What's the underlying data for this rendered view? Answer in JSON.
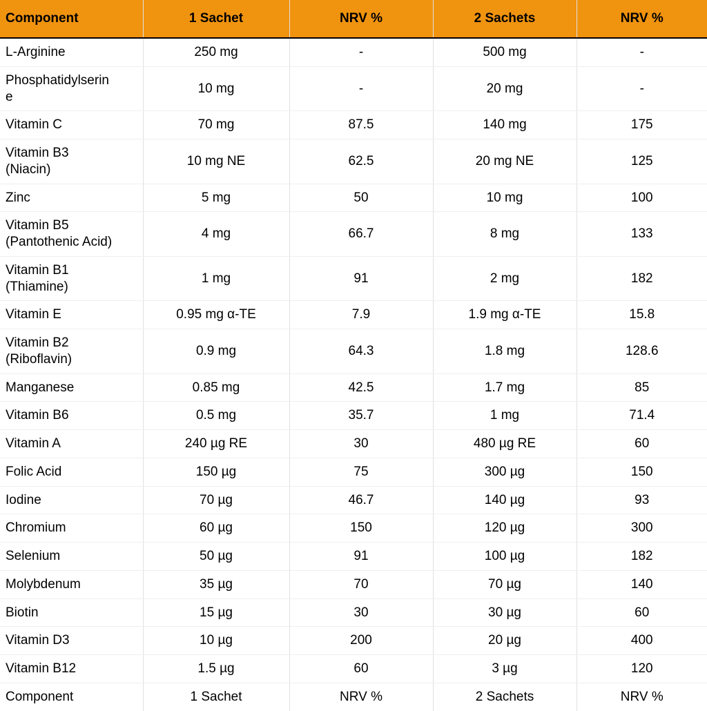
{
  "colors": {
    "header_bg": "#F0930F",
    "header_text": "#000000",
    "header_border_bottom": "#000000",
    "grid_vertical": "#e0e0e0",
    "grid_horizontal": "#efefef",
    "body_text": "#000000",
    "row_bg": "#ffffff"
  },
  "table": {
    "columns": [
      {
        "key": "component",
        "label": "Component"
      },
      {
        "key": "sachet1",
        "label": "1 Sachet"
      },
      {
        "key": "nrv1",
        "label": "NRV %"
      },
      {
        "key": "sachet2",
        "label": "2 Sachets"
      },
      {
        "key": "nrv2",
        "label": "NRV %"
      }
    ],
    "rows": [
      {
        "component": "L-Arginine",
        "sachet1": "250 mg",
        "nrv1": "-",
        "sachet2": "500 mg",
        "nrv2": "-"
      },
      {
        "component": "Phosphatidylserine",
        "sachet1": "10 mg",
        "nrv1": "-",
        "sachet2": "20 mg",
        "nrv2": "-"
      },
      {
        "component": "Vitamin C",
        "sachet1": "70 mg",
        "nrv1": "87.5",
        "sachet2": "140 mg",
        "nrv2": "175"
      },
      {
        "component": "Vitamin B3 (Niacin)",
        "sachet1": "10 mg NE",
        "nrv1": "62.5",
        "sachet2": "20 mg NE",
        "nrv2": "125"
      },
      {
        "component": "Zinc",
        "sachet1": "5 mg",
        "nrv1": "50",
        "sachet2": "10 mg",
        "nrv2": "100"
      },
      {
        "component": "Vitamin B5 (Pantothenic Acid)",
        "sachet1": "4 mg",
        "nrv1": "66.7",
        "sachet2": "8 mg",
        "nrv2": "133"
      },
      {
        "component": "Vitamin B1 (Thiamine)",
        "sachet1": "1 mg",
        "nrv1": "91",
        "sachet2": "2 mg",
        "nrv2": "182"
      },
      {
        "component": "Vitamin E",
        "sachet1": "0.95 mg α-TE",
        "nrv1": "7.9",
        "sachet2": "1.9 mg α-TE",
        "nrv2": "15.8"
      },
      {
        "component": "Vitamin B2 (Riboflavin)",
        "sachet1": "0.9 mg",
        "nrv1": "64.3",
        "sachet2": "1.8 mg",
        "nrv2": "128.6"
      },
      {
        "component": "Manganese",
        "sachet1": "0.85 mg",
        "nrv1": "42.5",
        "sachet2": "1.7 mg",
        "nrv2": "85"
      },
      {
        "component": "Vitamin B6",
        "sachet1": "0.5 mg",
        "nrv1": "35.7",
        "sachet2": "1 mg",
        "nrv2": "71.4"
      },
      {
        "component": "Vitamin A",
        "sachet1": "240 µg RE",
        "nrv1": "30",
        "sachet2": "480 µg RE",
        "nrv2": "60"
      },
      {
        "component": "Folic Acid",
        "sachet1": "150 µg",
        "nrv1": "75",
        "sachet2": "300 µg",
        "nrv2": "150"
      },
      {
        "component": "Iodine",
        "sachet1": "70 µg",
        "nrv1": "46.7",
        "sachet2": "140 µg",
        "nrv2": "93"
      },
      {
        "component": "Chromium",
        "sachet1": "60 µg",
        "nrv1": "150",
        "sachet2": "120 µg",
        "nrv2": "300"
      },
      {
        "component": "Selenium",
        "sachet1": "50 µg",
        "nrv1": "91",
        "sachet2": "100 µg",
        "nrv2": "182"
      },
      {
        "component": "Molybdenum",
        "sachet1": "35 µg",
        "nrv1": "70",
        "sachet2": "70 µg",
        "nrv2": "140"
      },
      {
        "component": "Biotin",
        "sachet1": "15 µg",
        "nrv1": "30",
        "sachet2": "30 µg",
        "nrv2": "60"
      },
      {
        "component": "Vitamin D3",
        "sachet1": "10 µg",
        "nrv1": "200",
        "sachet2": "20 µg",
        "nrv2": "400"
      },
      {
        "component": "Vitamin B12",
        "sachet1": "1.5 µg",
        "nrv1": "60",
        "sachet2": "3 µg",
        "nrv2": "120"
      }
    ],
    "footer": [
      "Component",
      "1 Sachet",
      "NRV %",
      "2 Sachets",
      "NRV %"
    ]
  }
}
